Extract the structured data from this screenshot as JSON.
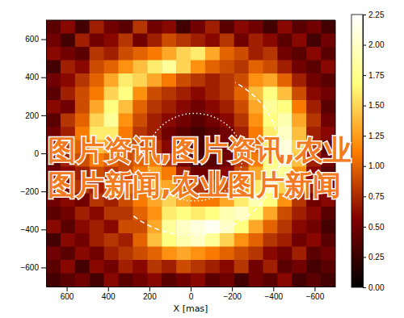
{
  "chart_data": {
    "type": "heatmap",
    "x_label": "X [mas]",
    "xlim": [
      700,
      -700
    ],
    "ylim": [
      -700,
      700
    ],
    "xticks": [
      600,
      400,
      200,
      0,
      {
        "value": -200,
        "label": "−200"
      },
      {
        "value": -400,
        "label": "−400"
      },
      {
        "value": -600,
        "label": "−600"
      }
    ],
    "yticks": [
      {
        "value": -600,
        "label": "−600"
      },
      {
        "value": -400,
        "label": "−400"
      },
      {
        "value": -200,
        "label": "−200"
      },
      0,
      200,
      400,
      600
    ],
    "x": [
      665,
      595,
      525,
      455,
      385,
      315,
      245,
      175,
      105,
      35,
      -35,
      -105,
      -175,
      -245,
      -315,
      -385,
      -455,
      -525,
      -595,
      -665
    ],
    "y": [
      665,
      595,
      525,
      455,
      385,
      315,
      245,
      175,
      105,
      35,
      -35,
      -105,
      -175,
      -245,
      -315,
      -385,
      -455,
      -525,
      -595,
      -665
    ],
    "z": [
      [
        0.4,
        0.6,
        0.3,
        0.7,
        0.5,
        0.4,
        0.8,
        0.5,
        0.6,
        0.3,
        0.5,
        0.7,
        0.4,
        0.6,
        0.5,
        0.3,
        0.6,
        0.4,
        0.5,
        0.3
      ],
      [
        0.5,
        0.3,
        0.7,
        0.5,
        0.6,
        0.8,
        0.5,
        0.7,
        0.9,
        0.8,
        0.7,
        0.6,
        0.8,
        0.5,
        0.7,
        0.6,
        0.4,
        0.6,
        0.3,
        0.5
      ],
      [
        0.6,
        0.5,
        0.4,
        0.8,
        0.7,
        0.9,
        1.0,
        1.1,
        1.3,
        1.5,
        1.6,
        1.3,
        1.0,
        0.9,
        0.7,
        0.8,
        0.5,
        0.4,
        0.6,
        0.4
      ],
      [
        0.3,
        0.7,
        0.6,
        0.9,
        1.0,
        1.2,
        1.4,
        1.6,
        1.8,
        1.5,
        1.2,
        1.0,
        0.9,
        0.8,
        1.0,
        0.9,
        0.7,
        0.5,
        0.4,
        0.6
      ],
      [
        0.5,
        0.6,
        0.8,
        1.0,
        1.3,
        1.6,
        1.5,
        1.3,
        1.1,
        0.9,
        0.8,
        0.7,
        0.8,
        0.9,
        1.2,
        1.3,
        1.0,
        0.7,
        0.5,
        0.4
      ],
      [
        0.4,
        0.7,
        0.9,
        1.1,
        1.5,
        1.7,
        1.2,
        0.9,
        0.8,
        0.7,
        0.6,
        0.7,
        0.8,
        1.0,
        1.4,
        1.7,
        1.4,
        0.9,
        0.6,
        0.5
      ],
      [
        0.6,
        0.5,
        0.9,
        1.3,
        1.7,
        1.4,
        1.0,
        0.8,
        0.7,
        0.6,
        0.5,
        0.6,
        0.7,
        0.9,
        1.3,
        1.8,
        1.7,
        1.1,
        0.7,
        0.4
      ],
      [
        0.4,
        0.8,
        1.0,
        1.5,
        1.8,
        1.2,
        0.9,
        0.7,
        0.6,
        0.5,
        0.4,
        0.5,
        0.6,
        0.8,
        1.2,
        1.7,
        1.9,
        1.3,
        0.8,
        0.5
      ],
      [
        0.5,
        0.7,
        1.1,
        1.6,
        1.6,
        1.1,
        0.8,
        0.7,
        0.5,
        0.4,
        0.3,
        0.4,
        0.5,
        0.7,
        1.1,
        1.6,
        2.0,
        1.4,
        0.7,
        0.6
      ],
      [
        0.6,
        0.8,
        1.0,
        1.4,
        1.3,
        1.0,
        0.9,
        0.8,
        0.6,
        0.4,
        0.3,
        0.3,
        0.5,
        0.7,
        1.0,
        1.6,
        2.1,
        1.5,
        0.8,
        0.4
      ],
      [
        0.4,
        0.7,
        0.9,
        1.1,
        1.0,
        0.9,
        1.0,
        1.1,
        0.8,
        0.5,
        0.3,
        0.4,
        0.5,
        0.8,
        1.1,
        1.7,
        2.0,
        1.4,
        0.7,
        0.5
      ],
      [
        0.5,
        0.6,
        0.7,
        0.9,
        0.8,
        0.9,
        1.1,
        1.3,
        1.1,
        0.7,
        0.5,
        0.5,
        0.6,
        0.9,
        1.3,
        1.8,
        1.8,
        1.2,
        0.6,
        0.4
      ],
      [
        0.3,
        0.5,
        0.8,
        0.7,
        0.9,
        1.0,
        1.2,
        1.4,
        1.3,
        1.0,
        0.8,
        0.7,
        0.9,
        1.2,
        1.6,
        1.9,
        1.5,
        1.0,
        0.7,
        0.5
      ],
      [
        0.5,
        0.6,
        0.5,
        0.8,
        0.7,
        0.9,
        1.1,
        1.3,
        1.5,
        1.3,
        1.1,
        1.1,
        1.3,
        1.6,
        1.9,
        1.7,
        1.2,
        0.8,
        0.5,
        0.6
      ],
      [
        0.4,
        0.5,
        0.7,
        0.6,
        0.8,
        0.8,
        1.0,
        1.2,
        1.6,
        1.7,
        1.6,
        1.7,
        1.9,
        2.0,
        1.7,
        1.3,
        0.9,
        0.7,
        0.6,
        0.4
      ],
      [
        0.6,
        0.4,
        0.6,
        0.7,
        0.6,
        0.9,
        0.9,
        1.3,
        1.8,
        2.0,
        2.1,
        2.2,
        2.0,
        1.7,
        1.3,
        1.0,
        0.8,
        0.6,
        0.5,
        0.3
      ],
      [
        0.3,
        0.6,
        0.5,
        0.7,
        0.8,
        0.7,
        1.0,
        1.4,
        1.7,
        1.9,
        2.0,
        1.8,
        1.5,
        1.2,
        1.0,
        0.8,
        0.7,
        0.5,
        0.6,
        0.4
      ],
      [
        0.5,
        0.4,
        0.6,
        0.5,
        0.7,
        0.8,
        0.9,
        1.0,
        1.2,
        1.3,
        1.2,
        1.1,
        1.0,
        0.9,
        0.8,
        0.6,
        0.5,
        0.7,
        0.4,
        0.5
      ],
      [
        0.4,
        0.6,
        0.3,
        0.6,
        0.5,
        0.7,
        0.6,
        0.8,
        0.7,
        0.9,
        0.8,
        0.7,
        0.6,
        0.8,
        0.5,
        0.7,
        0.4,
        0.5,
        0.3,
        0.4
      ],
      [
        0.3,
        0.4,
        0.5,
        0.3,
        0.6,
        0.4,
        0.5,
        0.6,
        0.4,
        0.5,
        0.6,
        0.4,
        0.5,
        0.3,
        0.5,
        0.4,
        0.6,
        0.3,
        0.4,
        0.3
      ]
    ],
    "zlim": [
      0,
      2.25
    ],
    "zticks": [
      {
        "value": 0,
        "label": "0.00"
      },
      {
        "value": 0.25,
        "label": "0.25"
      },
      {
        "value": 0.5,
        "label": "0.50"
      },
      {
        "value": 0.75,
        "label": "0.75"
      },
      {
        "value": 1,
        "label": "1.00"
      },
      {
        "value": 1.25,
        "label": "1.25"
      },
      {
        "value": 1.5,
        "label": "1.50"
      },
      {
        "value": 1.75,
        "label": "1.75"
      },
      {
        "value": 2,
        "label": "2.00"
      },
      {
        "value": 2.25,
        "label": "2.25"
      }
    ],
    "rings": [
      {
        "center": [
          -20,
          -20
        ],
        "radius": 230,
        "line_style": "dotted"
      },
      {
        "center": [
          0,
          0
        ],
        "radius": 430,
        "line_style": "dashed",
        "arc": [
          -130,
          60
        ]
      }
    ],
    "annotations": [
      "图片资讯,图片资讯,农业",
      "图片新闻,农业图片新闻"
    ]
  }
}
